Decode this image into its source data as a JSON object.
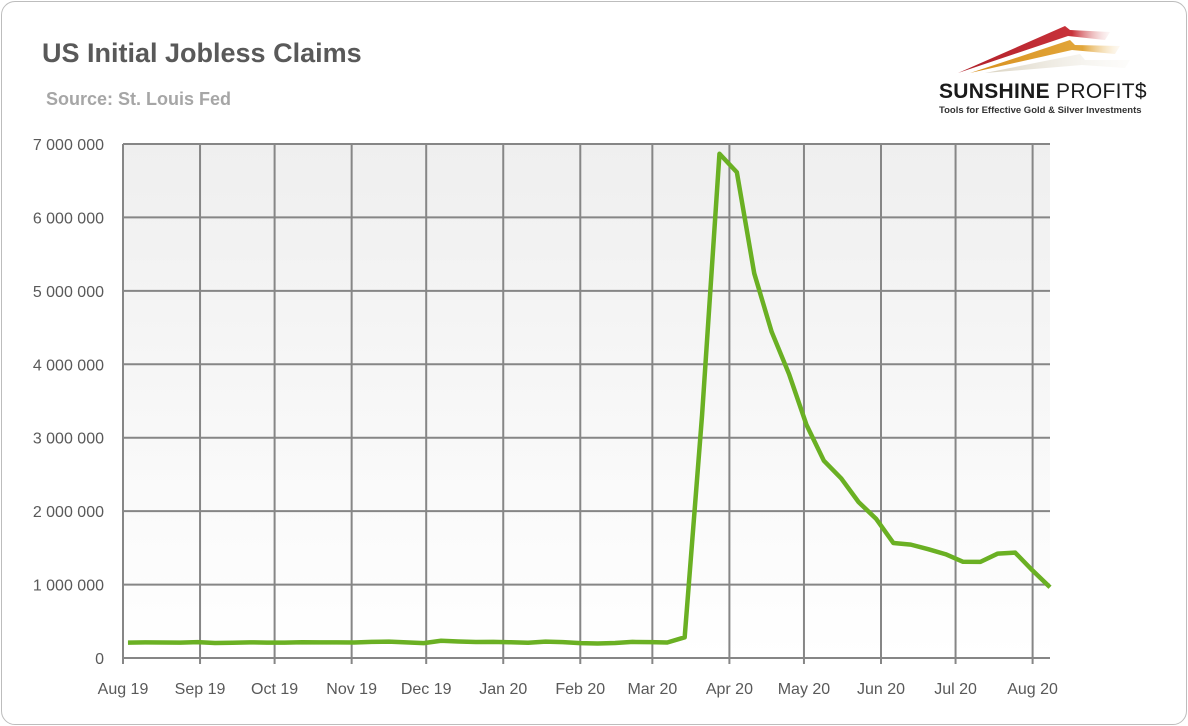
{
  "chart_data": {
    "type": "line",
    "title": "US Initial Jobless Claims",
    "subtitle": "Source: St. Louis Fed",
    "xlabel": "",
    "ylabel": "",
    "ylim": [
      0,
      7000000
    ],
    "xlim": [
      "2019-08-01",
      "2020-08-08"
    ],
    "y_ticks": [
      "0",
      "1 000 000",
      "2 000 000",
      "3 000 000",
      "4 000 000",
      "5 000 000",
      "6 000 000",
      "7 000 000"
    ],
    "x_ticks": [
      {
        "date": "2019-08-01",
        "label": "Aug 19"
      },
      {
        "date": "2019-09-01",
        "label": "Sep 19"
      },
      {
        "date": "2019-10-01",
        "label": "Oct 19"
      },
      {
        "date": "2019-11-01",
        "label": "Nov 19"
      },
      {
        "date": "2019-12-01",
        "label": "Dec 19"
      },
      {
        "date": "2020-01-01",
        "label": "Jan 20"
      },
      {
        "date": "2020-02-01",
        "label": "Feb 20"
      },
      {
        "date": "2020-03-01",
        "label": "Mar 20"
      },
      {
        "date": "2020-04-01",
        "label": "Apr 20"
      },
      {
        "date": "2020-05-01",
        "label": "May 20"
      },
      {
        "date": "2020-06-01",
        "label": "Jun 20"
      },
      {
        "date": "2020-07-01",
        "label": "Jul 20"
      },
      {
        "date": "2020-08-01",
        "label": "Aug 20"
      }
    ],
    "grid": true,
    "legend": "none",
    "line_color": "#6ab023",
    "series": [
      {
        "x": [
          "2019-08-03",
          "2019-08-10",
          "2019-08-17",
          "2019-08-24",
          "2019-08-31",
          "2019-09-07",
          "2019-09-14",
          "2019-09-21",
          "2019-09-28",
          "2019-10-05",
          "2019-10-12",
          "2019-10-19",
          "2019-10-26",
          "2019-11-02",
          "2019-11-09",
          "2019-11-16",
          "2019-11-23",
          "2019-11-30",
          "2019-12-07",
          "2019-12-14",
          "2019-12-21",
          "2019-12-28",
          "2020-01-04",
          "2020-01-11",
          "2020-01-18",
          "2020-01-25",
          "2020-02-01",
          "2020-02-08",
          "2020-02-15",
          "2020-02-22",
          "2020-02-29",
          "2020-03-07",
          "2020-03-14",
          "2020-03-21",
          "2020-03-28",
          "2020-04-04",
          "2020-04-11",
          "2020-04-18",
          "2020-04-25",
          "2020-05-02",
          "2020-05-09",
          "2020-05-16",
          "2020-05-23",
          "2020-05-30",
          "2020-06-06",
          "2020-06-13",
          "2020-06-20",
          "2020-06-27",
          "2020-07-04",
          "2020-07-11",
          "2020-07-18",
          "2020-07-25",
          "2020-08-01",
          "2020-08-08"
        ],
        "values": [
          209000,
          212000,
          211000,
          210000,
          217000,
          204000,
          208000,
          213000,
          210000,
          210000,
          214000,
          212000,
          213000,
          211000,
          220000,
          223000,
          213000,
          203000,
          235000,
          225000,
          218000,
          220000,
          214000,
          207000,
          223000,
          216000,
          202000,
          198000,
          205000,
          219000,
          217000,
          211000,
          282000,
          3307000,
          6867000,
          6615000,
          5237000,
          4442000,
          3867000,
          3176000,
          2687000,
          2446000,
          2123000,
          1897000,
          1566000,
          1544000,
          1482000,
          1413000,
          1310000,
          1309000,
          1422000,
          1435000,
          1191000,
          963000
        ]
      }
    ]
  },
  "logo": {
    "name_bold": "SUNSHINE",
    "name_light": " PROFIT$",
    "tagline": "Tools for Effective Gold & Silver Investments"
  }
}
